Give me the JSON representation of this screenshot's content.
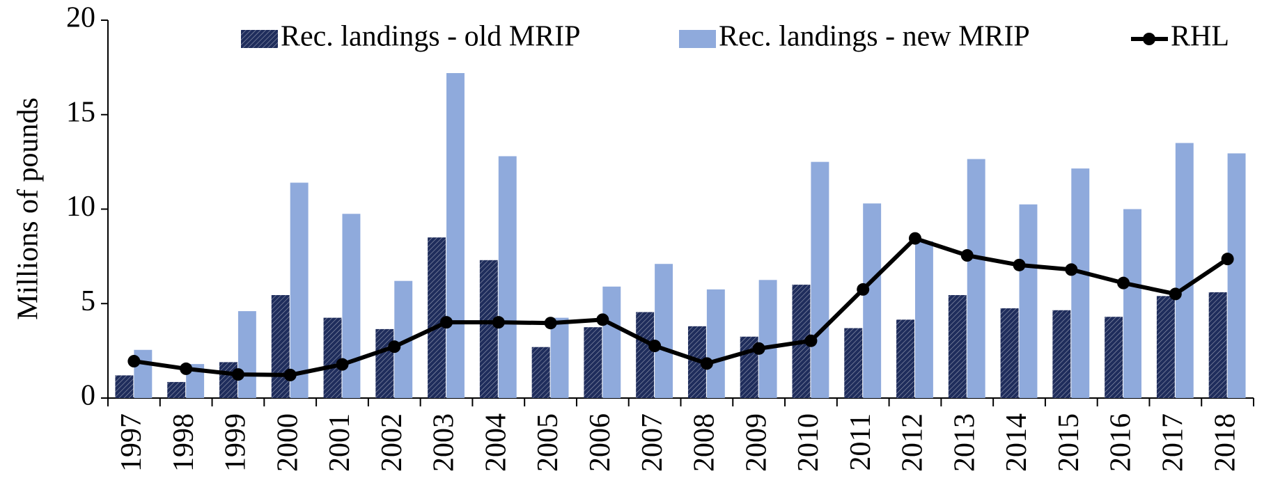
{
  "chart_data": {
    "type": "bar_line",
    "y_label": "Millions of pounds",
    "categories": [
      "1997",
      "1998",
      "1999",
      "2000",
      "2001",
      "2002",
      "2003",
      "2004",
      "2005",
      "2006",
      "2007",
      "2008",
      "2009",
      "2010",
      "2011",
      "2012",
      "2013",
      "2014",
      "2015",
      "2016",
      "2017",
      "2018"
    ],
    "series": [
      {
        "name": "Rec. landings - old MRIP",
        "color": "#1f2d5c",
        "type": "bar",
        "hatch": true,
        "values": [
          1.2,
          0.85,
          1.9,
          5.45,
          4.25,
          3.65,
          8.5,
          7.3,
          2.7,
          3.75,
          4.55,
          3.8,
          3.25,
          6.0,
          3.7,
          4.15,
          5.45,
          4.75,
          4.65,
          4.3,
          5.4,
          5.6
        ]
      },
      {
        "name": "Rec. landings - new MRIP",
        "color": "#8faadc",
        "type": "bar",
        "values": [
          2.55,
          1.8,
          4.6,
          11.4,
          9.75,
          6.2,
          17.2,
          12.8,
          4.25,
          5.9,
          7.1,
          5.75,
          6.25,
          12.5,
          10.3,
          8.3,
          12.65,
          10.25,
          12.15,
          10.0,
          13.5,
          12.95
        ]
      },
      {
        "name": "RHL",
        "color": "#000000",
        "type": "line",
        "values": [
          1.95,
          1.55,
          1.25,
          1.22,
          1.78,
          2.72,
          4.01,
          4.01,
          3.97,
          4.15,
          2.76,
          1.83,
          2.62,
          3.03,
          5.75,
          8.45,
          7.55,
          7.04,
          6.8,
          6.09,
          5.51,
          7.36
        ]
      }
    ],
    "ylim": [
      0,
      20
    ],
    "yticks": [
      0,
      5,
      10,
      15,
      20
    ],
    "grid": false,
    "legend": "top"
  }
}
